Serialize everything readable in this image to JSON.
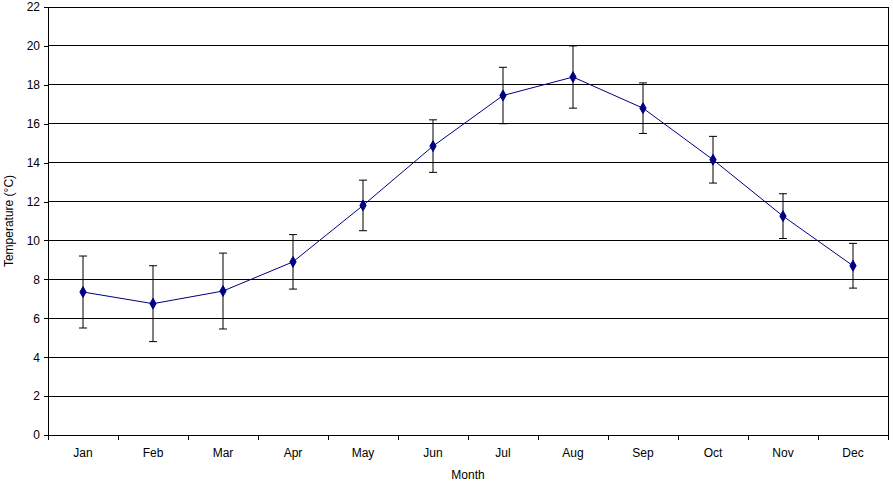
{
  "chart_data": {
    "type": "line",
    "x_label": "Month",
    "y_label": "Temperature (°C)",
    "categories": [
      "Jan",
      "Feb",
      "Mar",
      "Apr",
      "May",
      "Jun",
      "Jul",
      "Aug",
      "Sep",
      "Oct",
      "Nov",
      "Dec"
    ],
    "values": [
      7.35,
      6.75,
      7.4,
      8.9,
      11.8,
      14.85,
      17.45,
      18.4,
      16.8,
      14.15,
      11.25,
      8.7
    ],
    "errors": [
      1.85,
      1.95,
      1.95,
      1.4,
      1.3,
      1.35,
      1.45,
      1.6,
      1.3,
      1.2,
      1.15,
      1.15
    ],
    "color": "#000080",
    "marker": "diamond",
    "ylim": [
      0,
      22
    ],
    "yticks": [
      0,
      2,
      4,
      6,
      8,
      10,
      12,
      14,
      16,
      18,
      20,
      22
    ],
    "grid": true
  }
}
